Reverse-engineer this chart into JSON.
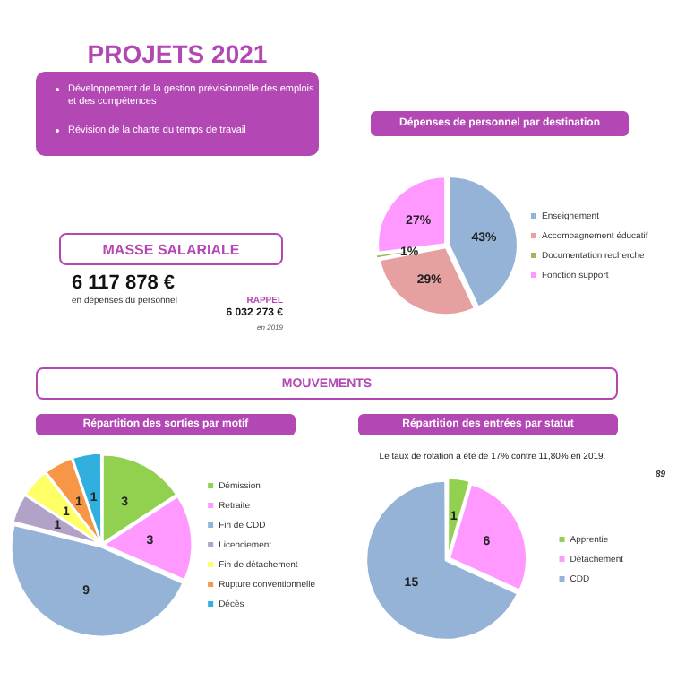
{
  "chart_data": [
    {
      "type": "other",
      "title": "PROJETS 2021",
      "annotations": [
        "Développement de la gestion prévisionnelle des emplois et des compétences",
        "Révision de la charte du temps de travail",
        "MASSE SALARIALE",
        "6 117 878 €",
        "en dépenses du personnel",
        "RAPPEL",
        "6 032 273 €",
        "en 2019",
        "MOUVEMENTS",
        "89"
      ]
    },
    {
      "type": "pie",
      "title": "Dépenses de personnel par destination",
      "categories": [
        "Enseignement",
        "Accompagnement éducatif",
        "Documentation recherche",
        "Fonction support"
      ],
      "values": [
        43,
        29,
        1,
        27
      ],
      "value_labels": [
        "43%",
        "29%",
        "1%",
        "27%"
      ],
      "colors": [
        "#95b3d7",
        "#e6a0a0",
        "#9bbb59",
        "#ff99ff"
      ],
      "legend": "right"
    },
    {
      "type": "pie",
      "title": "Répartition des sorties par motif",
      "categories": [
        "Démission",
        "Retraite",
        "Fin de CDD",
        "Licenciement",
        "Fin de détachement",
        "Rupture conventionnelle",
        "Décès"
      ],
      "values": [
        3,
        3,
        9,
        1,
        1,
        1,
        1
      ],
      "data_labels": true,
      "colors": [
        "#92d050",
        "#ff99ff",
        "#95b3d7",
        "#b3a2c7",
        "#ffff66",
        "#f79646",
        "#31b0e0"
      ],
      "legend": "right"
    },
    {
      "type": "pie",
      "title": "Répartition des entrées par statut",
      "subtitle": "Le taux de rotation a été de 17% contre 11,80% en 2019.",
      "categories": [
        "Apprentie",
        "Détachement",
        "CDD"
      ],
      "values": [
        1,
        6,
        15
      ],
      "data_labels": true,
      "colors": [
        "#92d050",
        "#ff99ff",
        "#95b3d7"
      ],
      "legend": "right"
    }
  ]
}
